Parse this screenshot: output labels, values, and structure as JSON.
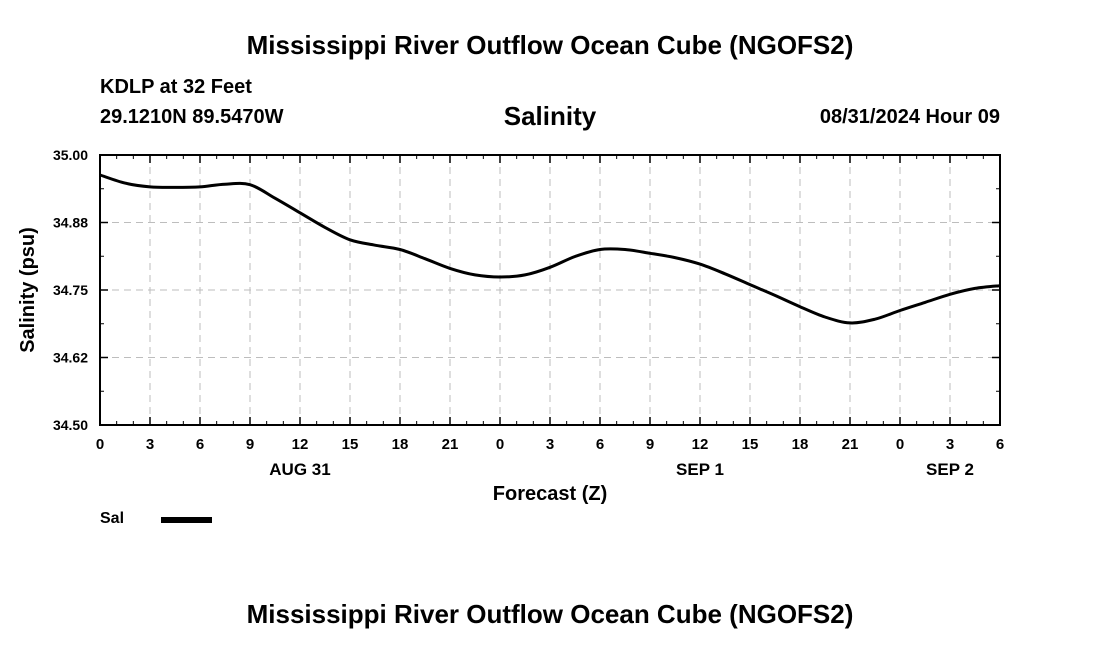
{
  "header": {
    "title_top": "Mississippi River Outflow Ocean Cube (NGOFS2)",
    "station": "KDLP at 32 Feet",
    "coordinates": "29.1210N  89.5470W",
    "date": "08/31/2024 Hour 09",
    "title_bottom": "Mississippi River Outflow Ocean Cube (NGOFS2)"
  },
  "chart_data": {
    "type": "line",
    "title": "Salinity",
    "xlabel": "Forecast (Z)",
    "ylabel": "Salinity (psu)",
    "xlim": [
      0,
      54
    ],
    "ylim": [
      34.5,
      35.0
    ],
    "grid": true,
    "x_ticks": [
      {
        "hours": 0,
        "label": "0"
      },
      {
        "hours": 3,
        "label": "3"
      },
      {
        "hours": 6,
        "label": "6"
      },
      {
        "hours": 9,
        "label": "9"
      },
      {
        "hours": 12,
        "label": "12"
      },
      {
        "hours": 15,
        "label": "15"
      },
      {
        "hours": 18,
        "label": "18"
      },
      {
        "hours": 21,
        "label": "21"
      },
      {
        "hours": 24,
        "label": "0"
      },
      {
        "hours": 27,
        "label": "3"
      },
      {
        "hours": 30,
        "label": "6"
      },
      {
        "hours": 33,
        "label": "9"
      },
      {
        "hours": 36,
        "label": "12"
      },
      {
        "hours": 39,
        "label": "15"
      },
      {
        "hours": 42,
        "label": "18"
      },
      {
        "hours": 45,
        "label": "21"
      },
      {
        "hours": 48,
        "label": "0"
      },
      {
        "hours": 51,
        "label": "3"
      },
      {
        "hours": 54,
        "label": "6"
      }
    ],
    "y_ticks": [
      {
        "value": 34.5,
        "label": "34.50"
      },
      {
        "value": 34.625,
        "label": "34.62"
      },
      {
        "value": 34.75,
        "label": "34.75"
      },
      {
        "value": 34.875,
        "label": "34.88"
      },
      {
        "value": 35.0,
        "label": "35.00"
      }
    ],
    "date_labels": [
      {
        "hours": 12,
        "label": "AUG 31"
      },
      {
        "hours": 36,
        "label": "SEP 1"
      },
      {
        "hours": 51,
        "label": "SEP 2"
      }
    ],
    "legend": [
      {
        "name": "Sal",
        "color": "#000000"
      }
    ],
    "series": [
      {
        "name": "Sal",
        "x": [
          0,
          1.5,
          3,
          4.5,
          6,
          7.5,
          9,
          10.5,
          12,
          13.5,
          15,
          16.5,
          18,
          19.5,
          21,
          22.5,
          24,
          25.5,
          27,
          28.5,
          30,
          31.5,
          33,
          34.5,
          36,
          37.5,
          39,
          40.5,
          42,
          43.5,
          45,
          46.5,
          48,
          49.5,
          51,
          52.5,
          54
        ],
        "values": [
          34.963,
          34.948,
          34.941,
          34.94,
          34.941,
          34.946,
          34.945,
          34.92,
          34.893,
          34.866,
          34.843,
          34.833,
          34.825,
          34.808,
          34.79,
          34.778,
          34.774,
          34.778,
          34.792,
          34.812,
          34.825,
          34.825,
          34.818,
          34.81,
          34.798,
          34.78,
          34.76,
          34.74,
          34.719,
          34.7,
          34.689,
          34.696,
          34.712,
          34.727,
          34.742,
          34.753,
          34.758
        ]
      }
    ]
  }
}
